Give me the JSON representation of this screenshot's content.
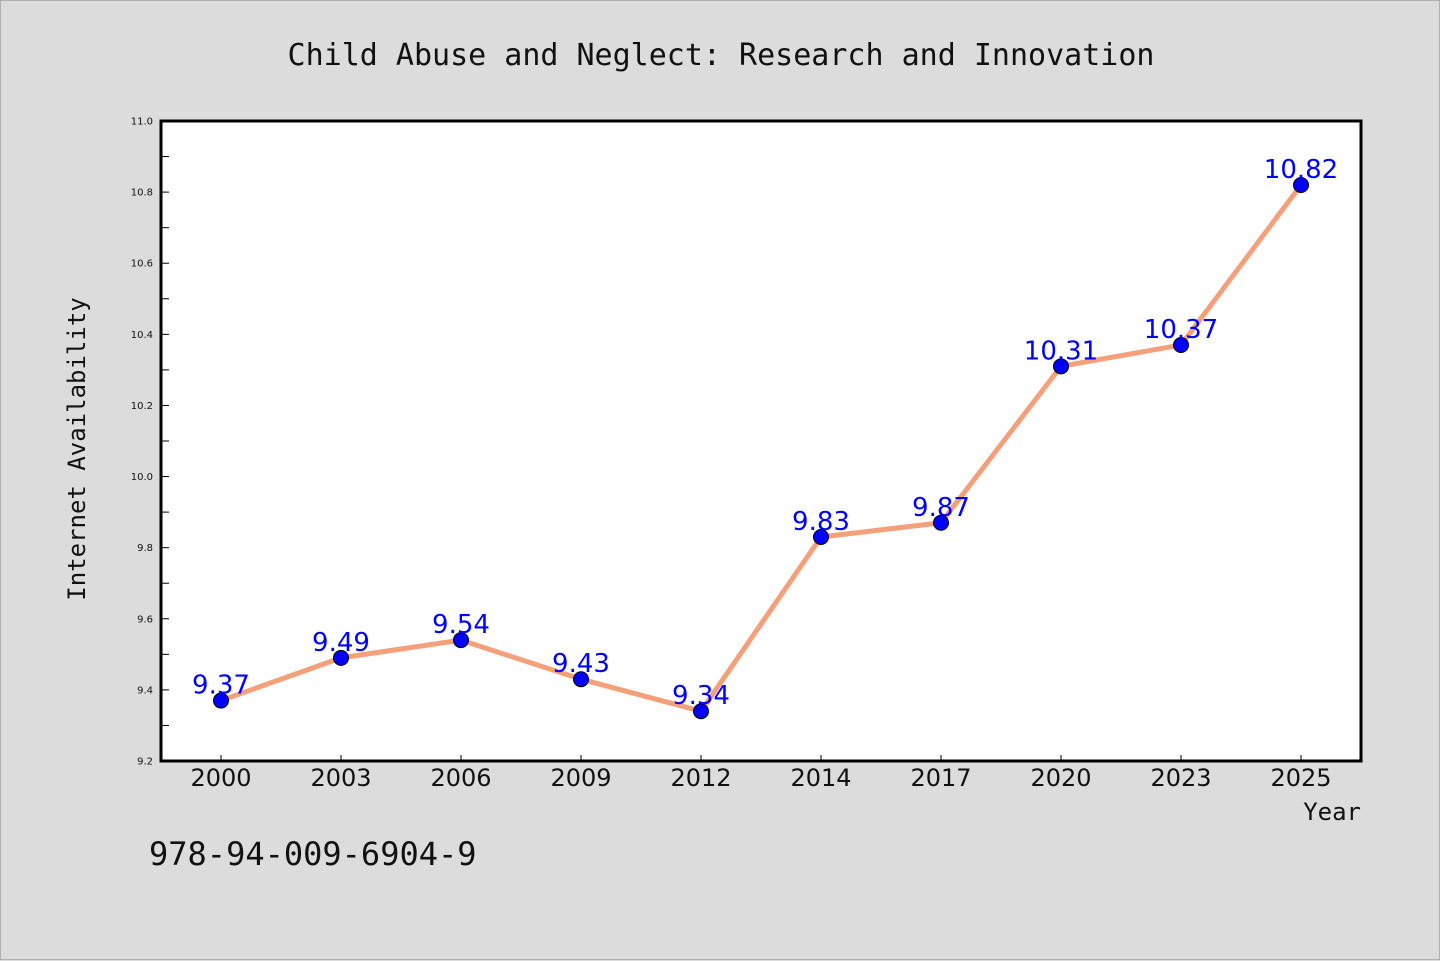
{
  "chart_data": {
    "type": "line",
    "title": "Child Abuse and Neglect: Research and Innovation",
    "xlabel": "Year",
    "ylabel": "Internet Availability",
    "categories": [
      "2000",
      "2003",
      "2006",
      "2009",
      "2012",
      "2014",
      "2017",
      "2020",
      "2023",
      "2025"
    ],
    "series": [
      {
        "values": [
          9.37,
          9.49,
          9.54,
          9.43,
          9.34,
          9.83,
          9.87,
          10.31,
          10.37,
          10.82
        ]
      }
    ],
    "data_labels": [
      "9.37",
      "9.49",
      "9.54",
      "9.43",
      "9.34",
      "9.83",
      "9.87",
      "10.31",
      "10.37",
      "10.82"
    ],
    "ylim": [
      9.2,
      11.0
    ],
    "yticks": [
      "9.2",
      "9.4",
      "9.6",
      "9.8",
      "10.0",
      "10.2",
      "10.4",
      "10.6",
      "10.8",
      "11.0"
    ],
    "grid": false,
    "colors": {
      "line": "#f4a07a",
      "marker": "#0000ff",
      "label": "#0000ff",
      "background": "#dcdcdc",
      "plot_area": "#ffffff"
    }
  },
  "footer": {
    "isbn": "978-94-009-6904-9"
  }
}
